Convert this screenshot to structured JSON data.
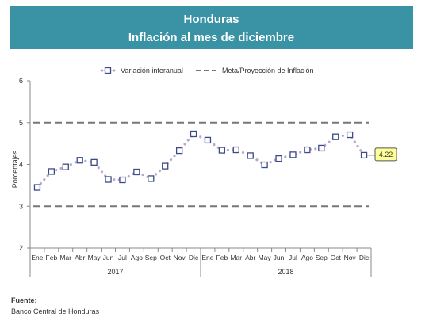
{
  "header": {
    "title": "Honduras",
    "subtitle": "Inflación al mes de diciembre"
  },
  "footer": {
    "label": "Fuente:",
    "source": "Banco Central de Honduras"
  },
  "chart_data": {
    "type": "line",
    "title": "Inflación al mes de diciembre",
    "ylabel": "Porcentajes",
    "xlabel": "",
    "ylim": [
      2,
      6
    ],
    "yticks": [
      2,
      3,
      4,
      5,
      6
    ],
    "grid": false,
    "legend_position": "top",
    "categories": [
      "Ene",
      "Feb",
      "Mar",
      "Abr",
      "May",
      "Jun",
      "Jul",
      "Ago",
      "Sep",
      "Oct",
      "Nov",
      "Dic",
      "Ene",
      "Feb",
      "Mar",
      "Abr",
      "May",
      "Jun",
      "Jul",
      "Ago",
      "Sep",
      "Oct",
      "Nov",
      "Dic"
    ],
    "year_groups": [
      {
        "label": "2017",
        "months": 12
      },
      {
        "label": "2018",
        "months": 12
      }
    ],
    "series": [
      {
        "name": "Variación interanual",
        "style": "dotted-with-square-markers",
        "color": "#b8a9cc",
        "marker_color": "#3d4a8a",
        "values": [
          3.45,
          3.83,
          3.94,
          4.1,
          4.05,
          3.64,
          3.63,
          3.82,
          3.66,
          3.96,
          4.33,
          4.73,
          4.58,
          4.34,
          4.35,
          4.21,
          3.99,
          4.14,
          4.23,
          4.35,
          4.39,
          4.66,
          4.71,
          4.22
        ]
      },
      {
        "name": "Meta/Proyección de Inflación",
        "style": "dashed",
        "color": "#777777",
        "bands": [
          3,
          5
        ]
      }
    ],
    "annotation": {
      "text": "4.22",
      "index": 23,
      "background": "#ffff99"
    }
  }
}
